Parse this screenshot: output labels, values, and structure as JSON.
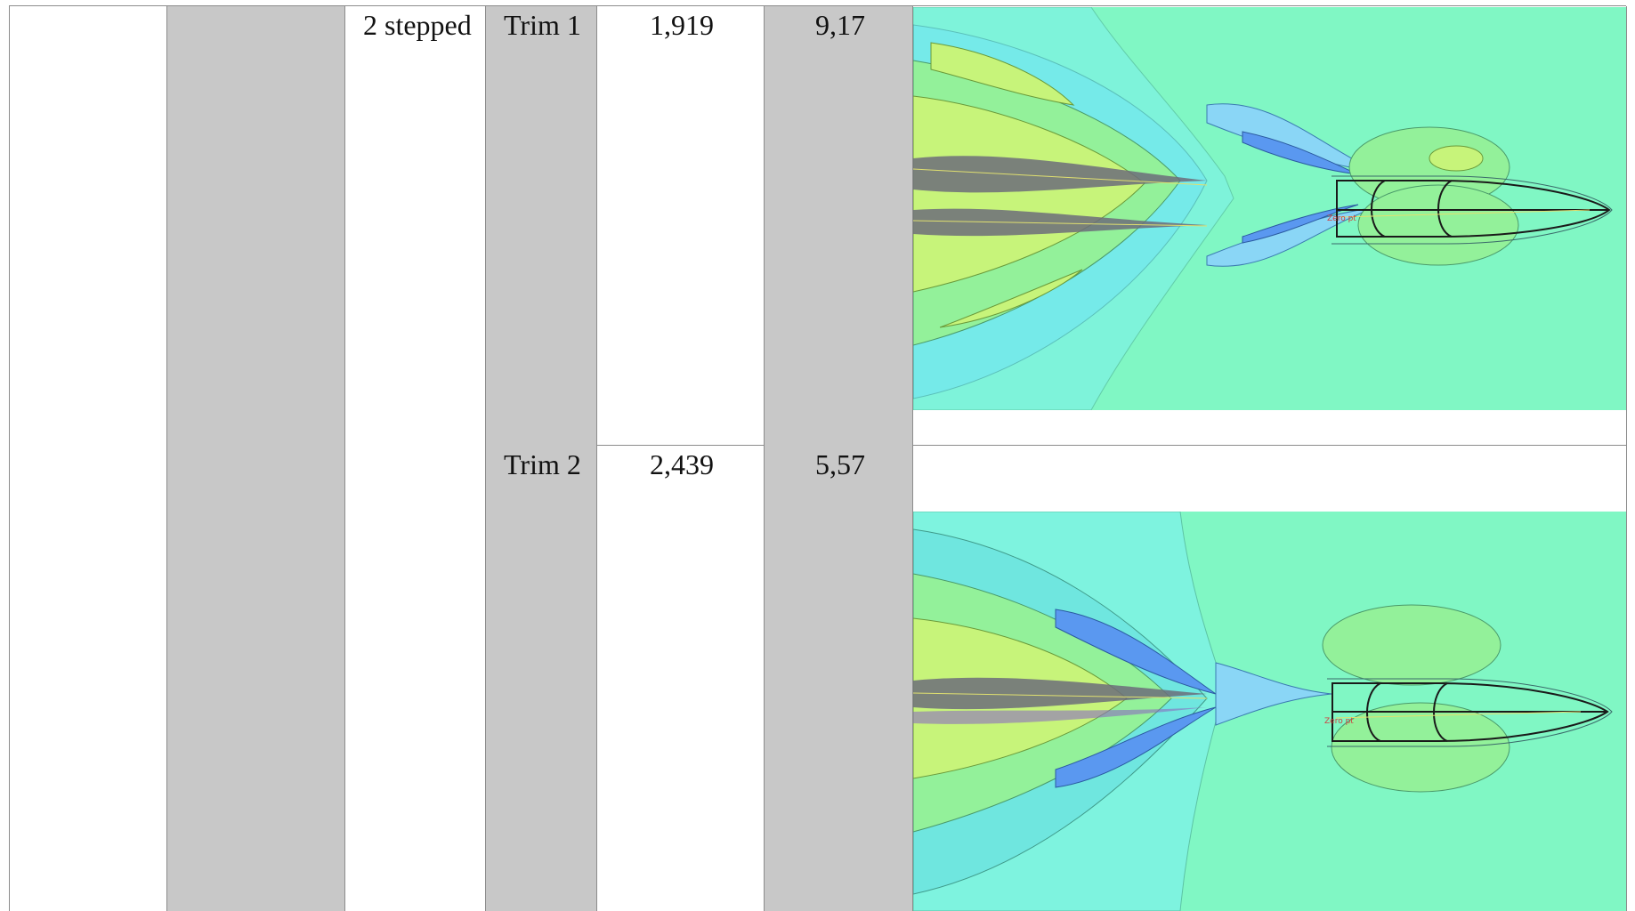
{
  "table": {
    "row_group": {
      "model": "2 stepped"
    },
    "rows": [
      {
        "trim": "Trim 1",
        "value_a": "1,919",
        "value_b": "9,17",
        "image": "wave-pattern-plot"
      },
      {
        "trim": "Trim 2",
        "value_a": "2,439",
        "value_b": "5,57",
        "image": "wave-pattern-plot"
      }
    ]
  },
  "colors": {
    "grey_column": "#c8c8c8",
    "border": "#8c8c8c",
    "plot_background": "#80f7c4",
    "contour_palette": [
      "#80f7c4",
      "#6fe6df",
      "#7df0f6",
      "#8ad6f6",
      "#5a98f0",
      "#93f19a",
      "#c7f47a",
      "#6c6c7a"
    ]
  }
}
